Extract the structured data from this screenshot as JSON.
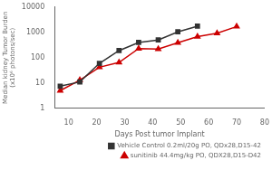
{
  "chart_data": {
    "type": "line",
    "xlabel": "Days Post tumor Implant",
    "ylabel": [
      "Median kidney Tumor Burden",
      "(x10⁶ photons/sec)"
    ],
    "series": [
      {
        "name": "Vehicle Control 0.2ml/20g PO, QDx28,D15-42",
        "color": "#333333",
        "marker": "square",
        "x": [
          7,
          14,
          21,
          28,
          35,
          42,
          49,
          56
        ],
        "values": [
          7.5,
          11,
          60,
          190,
          400,
          500,
          1050,
          1750
        ]
      },
      {
        "name": "sunitinib 44.4mg/kg PO, QDX28,D15-D42",
        "color": "#cc0000",
        "marker": "triangle",
        "x": [
          7,
          14,
          21,
          28,
          35,
          42,
          49,
          56,
          63,
          70
        ],
        "values": [
          5,
          13,
          42,
          65,
          230,
          220,
          390,
          680,
          920,
          1700
        ]
      }
    ],
    "xlim": [
      5,
      80
    ],
    "xticks": [
      10,
      20,
      30,
      40,
      50,
      60,
      70,
      80
    ],
    "ylim": [
      1,
      10000
    ],
    "yticks": [
      1,
      10,
      100,
      1000,
      10000
    ],
    "log": "y",
    "grid": false,
    "legend": "lower right"
  }
}
